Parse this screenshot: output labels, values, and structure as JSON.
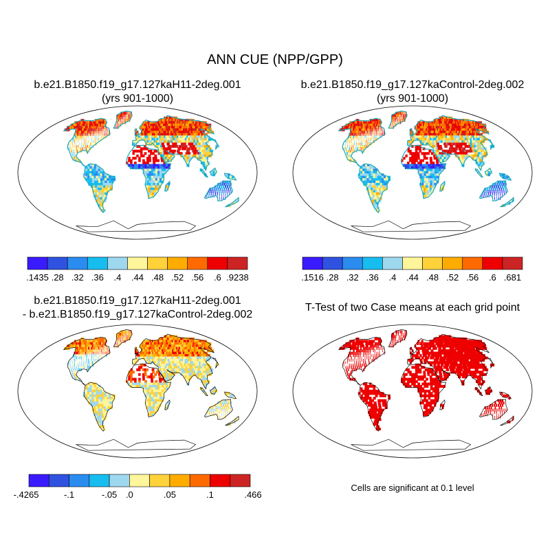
{
  "figure": {
    "title": "ANN CUE (NPP/GPP)",
    "footnote": "Cells are significant at 0.1 level"
  },
  "colors": {
    "palette": [
      "#3a1bff",
      "#2f52e0",
      "#2b8cf0",
      "#18bdf0",
      "#9ed8ef",
      "#fff59a",
      "#ffd23a",
      "#ffac00",
      "#ff6a00",
      "#ee0000",
      "#cc2424"
    ],
    "coast": "#000000",
    "land_outline": "#1aa6b7",
    "significant": "#ee0000"
  },
  "panels": [
    {
      "id": "case1",
      "title_line1": "b.e21.B1850.f19_g17.127kaH11-2deg.001",
      "title_line2": "(yrs 901-1000)",
      "colorbar_labels": [
        ".1435",
        ".28",
        ".32",
        ".36",
        ".4",
        ".44",
        ".48",
        ".52",
        ".56",
        ".6",
        ".9238"
      ]
    },
    {
      "id": "case2",
      "title_line1": "b.e21.B1850.f19_g17.127kaControl-2deg.002",
      "title_line2": "(yrs 901-1000)",
      "colorbar_labels": [
        ".1516",
        ".28",
        ".32",
        ".36",
        ".4",
        ".44",
        ".48",
        ".52",
        ".56",
        ".6",
        ".681"
      ]
    },
    {
      "id": "diff",
      "title_line1": "b.e21.B1850.f19_g17.127kaH11-2deg.001",
      "title_line2": "- b.e21.B1850.f19_g17.127kaControl-2deg.002",
      "colorbar_labels": [
        "-.4265",
        "-.1",
        "-.05",
        ".0",
        ".05",
        ".1",
        ".466"
      ]
    },
    {
      "id": "ttest",
      "title_line1": "T-Test of two Case means at each grid point"
    }
  ]
}
